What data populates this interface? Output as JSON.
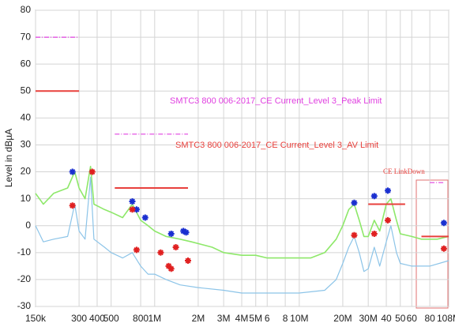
{
  "chart_data": {
    "type": "line",
    "y_label": "Level in dBµA",
    "xscale": "log",
    "grid": true,
    "xlim": [
      0.15,
      108
    ],
    "ylim": [
      -30,
      80
    ],
    "yticks": [
      -30,
      -20,
      -10,
      0,
      10,
      20,
      30,
      40,
      50,
      60,
      70,
      80
    ],
    "xticks": [
      {
        "value": 0.15,
        "label": "150k"
      },
      {
        "value": 0.3,
        "label": "300"
      },
      {
        "value": 0.4,
        "label": "400"
      },
      {
        "value": 0.5,
        "label": "500"
      },
      {
        "value": 0.8,
        "label": "800"
      },
      {
        "value": 1,
        "label": "1M"
      },
      {
        "value": 2,
        "label": "2M"
      },
      {
        "value": 3,
        "label": "3M"
      },
      {
        "value": 4,
        "label": "4M"
      },
      {
        "value": 5,
        "label": "5M"
      },
      6,
      8,
      {
        "value": 10,
        "label": "10M"
      },
      {
        "value": 20,
        "label": "20M"
      },
      {
        "value": 30,
        "label": "30M"
      },
      40,
      50,
      60,
      80,
      {
        "value": 108,
        "label": "108M"
      }
    ],
    "series": [
      {
        "color": "#8ee86a",
        "x": [
          0.15,
          0.17,
          0.2,
          0.25,
          0.28,
          0.3,
          0.33,
          0.36,
          0.38,
          0.45,
          0.5,
          0.6,
          0.7,
          0.8,
          0.9,
          1.0,
          1.2,
          1.5,
          1.8,
          2.5,
          3,
          4,
          5,
          6,
          8,
          10,
          12,
          15,
          18,
          20,
          22,
          24,
          26,
          28,
          30,
          33,
          36,
          40,
          43,
          47,
          50,
          60,
          70,
          80,
          90,
          108
        ],
        "values": [
          12,
          8,
          12,
          14,
          20,
          14,
          10,
          22,
          8,
          6,
          5,
          3,
          8,
          2,
          0,
          -2,
          -4,
          -5,
          -6,
          -8,
          -10,
          -11,
          -11,
          -12,
          -12,
          -12,
          -12,
          -10,
          -5,
          0,
          6,
          8,
          2,
          -4,
          -4,
          2,
          -2,
          8,
          10,
          2,
          -3,
          -4,
          -5,
          -5,
          -5,
          -4
        ]
      },
      {
        "color": "#8cc4e8",
        "x": [
          0.15,
          0.17,
          0.2,
          0.25,
          0.28,
          0.3,
          0.33,
          0.36,
          0.38,
          0.45,
          0.5,
          0.6,
          0.7,
          0.8,
          0.9,
          1.0,
          1.2,
          1.5,
          2,
          3,
          4,
          5,
          8,
          10,
          15,
          18,
          20,
          22,
          24,
          26,
          28,
          30,
          33,
          36,
          40,
          43,
          47,
          50,
          60,
          80,
          108
        ],
        "values": [
          0,
          -6,
          -5,
          -4,
          8,
          -2,
          -5,
          18,
          -5,
          -8,
          -10,
          -12,
          -10,
          -15,
          -18,
          -18,
          -20,
          -22,
          -23,
          -24,
          -25,
          -25,
          -25,
          -25,
          -24,
          -20,
          -14,
          -8,
          -4,
          -10,
          -17,
          -16,
          -8,
          -15,
          -6,
          0,
          -10,
          -14,
          -15,
          -15,
          -13
        ]
      }
    ],
    "limits": [
      {
        "color": "#e8403c",
        "dashed": false,
        "x": [
          0.15,
          0.3
        ],
        "values": [
          50,
          50
        ]
      },
      {
        "color": "#e8403c",
        "dashed": false,
        "x": [
          0.53,
          1.7
        ],
        "values": [
          14,
          14
        ]
      },
      {
        "color": "#e8403c",
        "dashed": false,
        "x": [
          30,
          54
        ],
        "values": [
          8,
          8
        ]
      },
      {
        "color": "#e8403c",
        "dashed": false,
        "x": [
          70,
          108
        ],
        "values": [
          -4,
          -4
        ]
      },
      {
        "color": "#e040e0",
        "dashed": true,
        "x": [
          0.15,
          0.3
        ],
        "values": [
          70,
          70
        ]
      },
      {
        "color": "#e040e0",
        "dashed": true,
        "x": [
          0.53,
          1.7
        ],
        "values": [
          34,
          34
        ]
      },
      {
        "color": "#e040e0",
        "dashed": true,
        "x": [
          80,
          100
        ],
        "values": [
          16,
          16
        ]
      }
    ],
    "markers": [
      {
        "color": "#1a2fd0",
        "x": [
          0.27,
          0.7,
          0.75,
          0.86,
          1.3,
          1.58,
          1.65,
          24,
          33,
          41,
          100
        ],
        "values": [
          20,
          9,
          6,
          3,
          -3,
          -2,
          -2.5,
          8.5,
          11,
          13,
          1
        ]
      },
      {
        "color": "#e02020",
        "x": [
          0.27,
          0.37,
          0.7,
          0.75,
          1.1,
          1.25,
          1.3,
          1.4,
          1.7,
          24,
          33,
          41,
          100
        ],
        "values": [
          7.5,
          20,
          6,
          -9,
          -10,
          -15,
          -16,
          -8,
          -13,
          -3.5,
          -3,
          2,
          -8.5
        ]
      }
    ],
    "annotations": [
      {
        "text": "SMTC3 800 006-2017_CE Current_Level 3_Peak Limit",
        "color": "#e040e0"
      },
      {
        "text": "SMTC3 800 006-2017_CE Current_Level 3_AV Limit",
        "color": "#e8403c"
      },
      {
        "text": "CE LinkDown",
        "color": "#e8403c"
      }
    ]
  }
}
